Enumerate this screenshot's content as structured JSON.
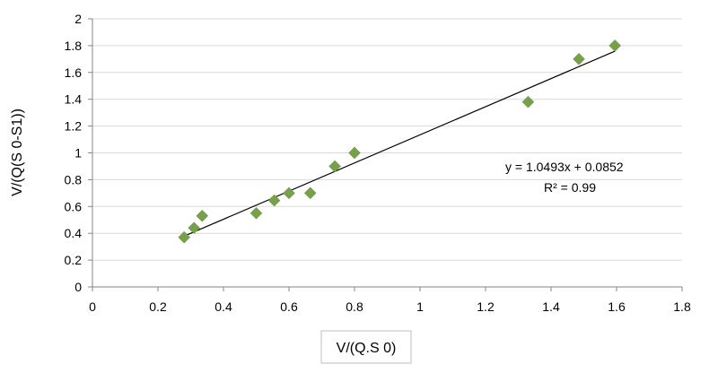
{
  "chart_data": {
    "type": "scatter",
    "title": "",
    "xlabel": "V/(Q.S 0)",
    "ylabel": "V/(Q(S 0-S1))",
    "xlim": [
      0,
      1.8
    ],
    "ylim": [
      0,
      2
    ],
    "x_ticks": [
      "0",
      "0.2",
      "0.4",
      "0.6",
      "0.8",
      "1",
      "1.2",
      "1.4",
      "1.6",
      "1.8"
    ],
    "y_ticks": [
      "0",
      "0.2",
      "0.4",
      "0.6",
      "0.8",
      "1",
      "1.2",
      "1.4",
      "1.6",
      "1.8",
      "2"
    ],
    "grid": "horizontal",
    "marker": "diamond",
    "marker_color": "#77a04a",
    "series": [
      {
        "points": [
          {
            "x": 0.28,
            "y": 0.37
          },
          {
            "x": 0.31,
            "y": 0.44
          },
          {
            "x": 0.335,
            "y": 0.53
          },
          {
            "x": 0.5,
            "y": 0.55
          },
          {
            "x": 0.555,
            "y": 0.645
          },
          {
            "x": 0.6,
            "y": 0.7
          },
          {
            "x": 0.665,
            "y": 0.7
          },
          {
            "x": 0.74,
            "y": 0.9
          },
          {
            "x": 0.8,
            "y": 1.0
          },
          {
            "x": 1.33,
            "y": 1.38
          },
          {
            "x": 1.485,
            "y": 1.7
          },
          {
            "x": 1.595,
            "y": 1.8
          }
        ]
      }
    ],
    "trendline": {
      "type": "linear",
      "slope": 1.0493,
      "intercept": 0.0852,
      "x_start": 0.28,
      "x_end": 1.595,
      "color": "#000000"
    },
    "annotations": {
      "equation": "y = 1.0493x + 0.0852",
      "r_squared": "R² = 0.99"
    }
  }
}
